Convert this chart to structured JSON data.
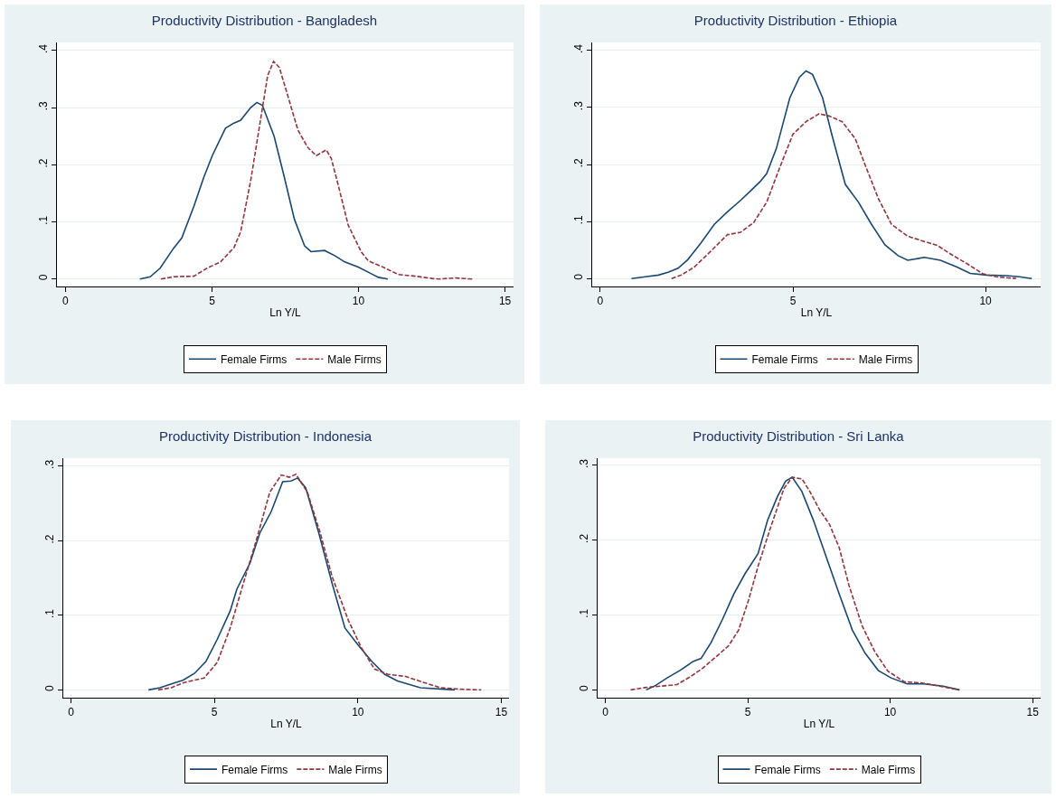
{
  "chart_data": [
    {
      "type": "line",
      "title": "Productivity Distribution - Bangladesh",
      "xlabel": "Ln Y/L",
      "xlim": [
        -0.29,
        15.29
      ],
      "xticks": [
        0,
        5,
        10,
        15
      ],
      "ylim": [
        -0.013,
        0.414
      ],
      "yticks": [
        {
          "value": 0,
          "label": "0"
        },
        {
          "value": 0.1,
          "label": ".1"
        },
        {
          "value": 0.2,
          "label": ".2"
        },
        {
          "value": 0.3,
          "label": ".3"
        },
        {
          "value": 0.4,
          "label": ".4"
        }
      ],
      "grid": "y",
      "legend": "bottom",
      "marker": "none",
      "series": [
        {
          "name": "Female Firms",
          "color": "#1a476f",
          "line_style": "solid",
          "x": [
            2.54,
            2.89,
            3.23,
            3.69,
            3.97,
            4.38,
            4.72,
            5.01,
            5.46,
            5.75,
            5.98,
            6.32,
            6.53,
            6.72,
            7.12,
            7.47,
            7.81,
            8.16,
            8.38,
            8.84,
            9.19,
            9.53,
            9.99,
            10.45,
            10.68,
            11.0
          ],
          "values": [
            0,
            0.004,
            0.019,
            0.054,
            0.072,
            0.127,
            0.178,
            0.216,
            0.264,
            0.273,
            0.278,
            0.3,
            0.309,
            0.304,
            0.25,
            0.178,
            0.105,
            0.058,
            0.048,
            0.05,
            0.041,
            0.03,
            0.021,
            0.009,
            0.003,
            0
          ]
        },
        {
          "name": "Male Firms",
          "color": "#90353b",
          "line_style": "dashed",
          "x": [
            3.26,
            3.69,
            4.38,
            4.83,
            5.29,
            5.75,
            5.98,
            6.32,
            6.67,
            6.9,
            7.1,
            7.3,
            7.58,
            7.93,
            8.27,
            8.56,
            8.9,
            9.07,
            9.3,
            9.65,
            10.1,
            10.33,
            10.79,
            11.36,
            11.94,
            12.51,
            12.74,
            13.31,
            13.88
          ],
          "values": [
            0,
            0.004,
            0.005,
            0.019,
            0.03,
            0.055,
            0.083,
            0.172,
            0.283,
            0.356,
            0.381,
            0.37,
            0.322,
            0.261,
            0.23,
            0.216,
            0.226,
            0.211,
            0.166,
            0.094,
            0.047,
            0.032,
            0.022,
            0.008,
            0.005,
            0.001,
            0,
            0.002,
            0
          ]
        }
      ]
    },
    {
      "type": "line",
      "title": "Productivity Distribution - Ethiopia",
      "xlabel": "Ln Y/L",
      "xlim": [
        -0.21,
        11.43
      ],
      "xticks": [
        0,
        5,
        10
      ],
      "ylim": [
        -0.014,
        0.414
      ],
      "yticks": [
        {
          "value": 0,
          "label": "0"
        },
        {
          "value": 0.1,
          "label": ".1"
        },
        {
          "value": 0.2,
          "label": ".2"
        },
        {
          "value": 0.3,
          "label": ".3"
        },
        {
          "value": 0.4,
          "label": ".4"
        }
      ],
      "grid": "y",
      "legend": "bottom",
      "marker": "none",
      "series": [
        {
          "name": "Female Firms",
          "color": "#1a476f",
          "line_style": "solid",
          "x": [
            0.81,
            1.17,
            1.51,
            1.76,
            2.02,
            2.27,
            2.61,
            2.96,
            3.3,
            3.64,
            3.89,
            4.15,
            4.32,
            4.57,
            4.92,
            5.17,
            5.34,
            5.51,
            5.77,
            6.02,
            6.36,
            6.7,
            7.04,
            7.39,
            7.73,
            7.98,
            8.41,
            8.83,
            9.26,
            9.6,
            10.03,
            10.54,
            10.88,
            11.2
          ],
          "values": [
            0,
            0.003,
            0.006,
            0.011,
            0.018,
            0.033,
            0.062,
            0.095,
            0.117,
            0.137,
            0.153,
            0.17,
            0.184,
            0.228,
            0.317,
            0.353,
            0.364,
            0.358,
            0.317,
            0.25,
            0.165,
            0.134,
            0.095,
            0.059,
            0.04,
            0.032,
            0.037,
            0.032,
            0.02,
            0.009,
            0.006,
            0.005,
            0.003,
            0
          ]
        },
        {
          "name": "Male Firms",
          "color": "#90353b",
          "line_style": "dashed",
          "x": [
            1.85,
            2.1,
            2.44,
            2.87,
            3.3,
            3.64,
            3.98,
            4.32,
            4.66,
            5.0,
            5.34,
            5.68,
            5.94,
            6.28,
            6.62,
            6.87,
            7.22,
            7.56,
            7.98,
            8.41,
            8.75,
            9.09,
            9.52,
            9.94,
            10.28,
            10.79
          ],
          "values": [
            0,
            0.006,
            0.02,
            0.048,
            0.077,
            0.081,
            0.098,
            0.134,
            0.195,
            0.253,
            0.275,
            0.289,
            0.285,
            0.275,
            0.245,
            0.2,
            0.14,
            0.095,
            0.074,
            0.065,
            0.058,
            0.043,
            0.026,
            0.008,
            0.003,
            0
          ]
        }
      ]
    },
    {
      "type": "line",
      "title": "Productivity Distribution - Indonesia",
      "xlabel": "Ln Y/L",
      "xlim": [
        -0.27,
        15.27
      ],
      "xticks": [
        0,
        5,
        10,
        15
      ],
      "ylim": [
        -0.0104,
        0.3105
      ],
      "yticks": [
        {
          "value": 0,
          "label": "0"
        },
        {
          "value": 0.1,
          "label": ".1"
        },
        {
          "value": 0.2,
          "label": ".2"
        },
        {
          "value": 0.3,
          "label": ".3"
        }
      ],
      "grid": "y",
      "legend": "bottom",
      "marker": "none",
      "series": [
        {
          "name": "Female Firms",
          "color": "#1a476f",
          "line_style": "solid",
          "x": [
            2.7,
            3.1,
            3.5,
            3.9,
            4.3,
            4.7,
            5.1,
            5.55,
            5.78,
            6.24,
            6.58,
            6.98,
            7.38,
            7.67,
            7.9,
            8.18,
            8.64,
            9.1,
            9.55,
            10.01,
            10.47,
            10.93,
            11.38,
            12.18,
            13.38
          ],
          "values": [
            0,
            0.003,
            0.008,
            0.013,
            0.022,
            0.038,
            0.068,
            0.106,
            0.135,
            0.17,
            0.21,
            0.239,
            0.279,
            0.28,
            0.284,
            0.271,
            0.21,
            0.143,
            0.083,
            0.06,
            0.039,
            0.021,
            0.012,
            0.003,
            0
          ]
        },
        {
          "name": "Male Firms",
          "color": "#90353b",
          "line_style": "dashed",
          "x": [
            3.04,
            3.5,
            3.95,
            4.64,
            5.1,
            5.55,
            6.01,
            6.47,
            6.93,
            7.33,
            7.61,
            7.84,
            8.24,
            8.69,
            9.1,
            9.67,
            10.13,
            10.58,
            11.04,
            11.67,
            12.3,
            12.87,
            13.55,
            14.3
          ],
          "values": [
            0,
            0.003,
            0.01,
            0.016,
            0.037,
            0.083,
            0.143,
            0.202,
            0.265,
            0.288,
            0.285,
            0.289,
            0.265,
            0.21,
            0.152,
            0.093,
            0.056,
            0.028,
            0.021,
            0.018,
            0.01,
            0.003,
            0.001,
            0
          ]
        }
      ]
    },
    {
      "type": "line",
      "title": "Productivity Distribution - Sri Lanka",
      "xlabel": "Ln Y/L",
      "xlim": [
        -0.27,
        15.28
      ],
      "xticks": [
        0,
        5,
        10,
        15
      ],
      "ylim": [
        -0.0104,
        0.3095
      ],
      "yticks": [
        {
          "value": 0,
          "label": "0"
        },
        {
          "value": 0.1,
          "label": ".1"
        },
        {
          "value": 0.2,
          "label": ".2"
        },
        {
          "value": 0.3,
          "label": ".3"
        }
      ],
      "grid": "y",
      "legend": "bottom",
      "marker": "none",
      "series": [
        {
          "name": "Female Firms",
          "color": "#1a476f",
          "line_style": "solid",
          "x": [
            1.43,
            1.77,
            2.17,
            2.62,
            3.08,
            3.36,
            3.71,
            4.11,
            4.51,
            4.9,
            5.36,
            5.7,
            6.04,
            6.33,
            6.56,
            6.9,
            7.3,
            7.76,
            8.21,
            8.67,
            9.12,
            9.58,
            10.03,
            10.6,
            11.17,
            11.86,
            12.43
          ],
          "values": [
            0,
            0.006,
            0.016,
            0.026,
            0.038,
            0.042,
            0.063,
            0.094,
            0.128,
            0.155,
            0.182,
            0.227,
            0.258,
            0.279,
            0.284,
            0.265,
            0.227,
            0.177,
            0.128,
            0.08,
            0.049,
            0.026,
            0.016,
            0.008,
            0.008,
            0.005,
            0
          ]
        },
        {
          "name": "Male Firms",
          "color": "#90353b",
          "line_style": "dashed",
          "x": [
            0.89,
            1.37,
            1.94,
            2.51,
            2.96,
            3.42,
            3.88,
            4.33,
            4.68,
            5.02,
            5.36,
            5.82,
            6.27,
            6.56,
            6.9,
            7.18,
            7.53,
            7.87,
            8.21,
            8.55,
            9.01,
            9.46,
            9.92,
            10.49,
            11.17,
            11.86,
            12.43
          ],
          "values": [
            0,
            0.003,
            0.005,
            0.007,
            0.017,
            0.029,
            0.044,
            0.059,
            0.08,
            0.119,
            0.165,
            0.219,
            0.269,
            0.284,
            0.282,
            0.265,
            0.24,
            0.221,
            0.19,
            0.14,
            0.086,
            0.051,
            0.025,
            0.011,
            0.009,
            0.004,
            0
          ]
        }
      ]
    }
  ]
}
